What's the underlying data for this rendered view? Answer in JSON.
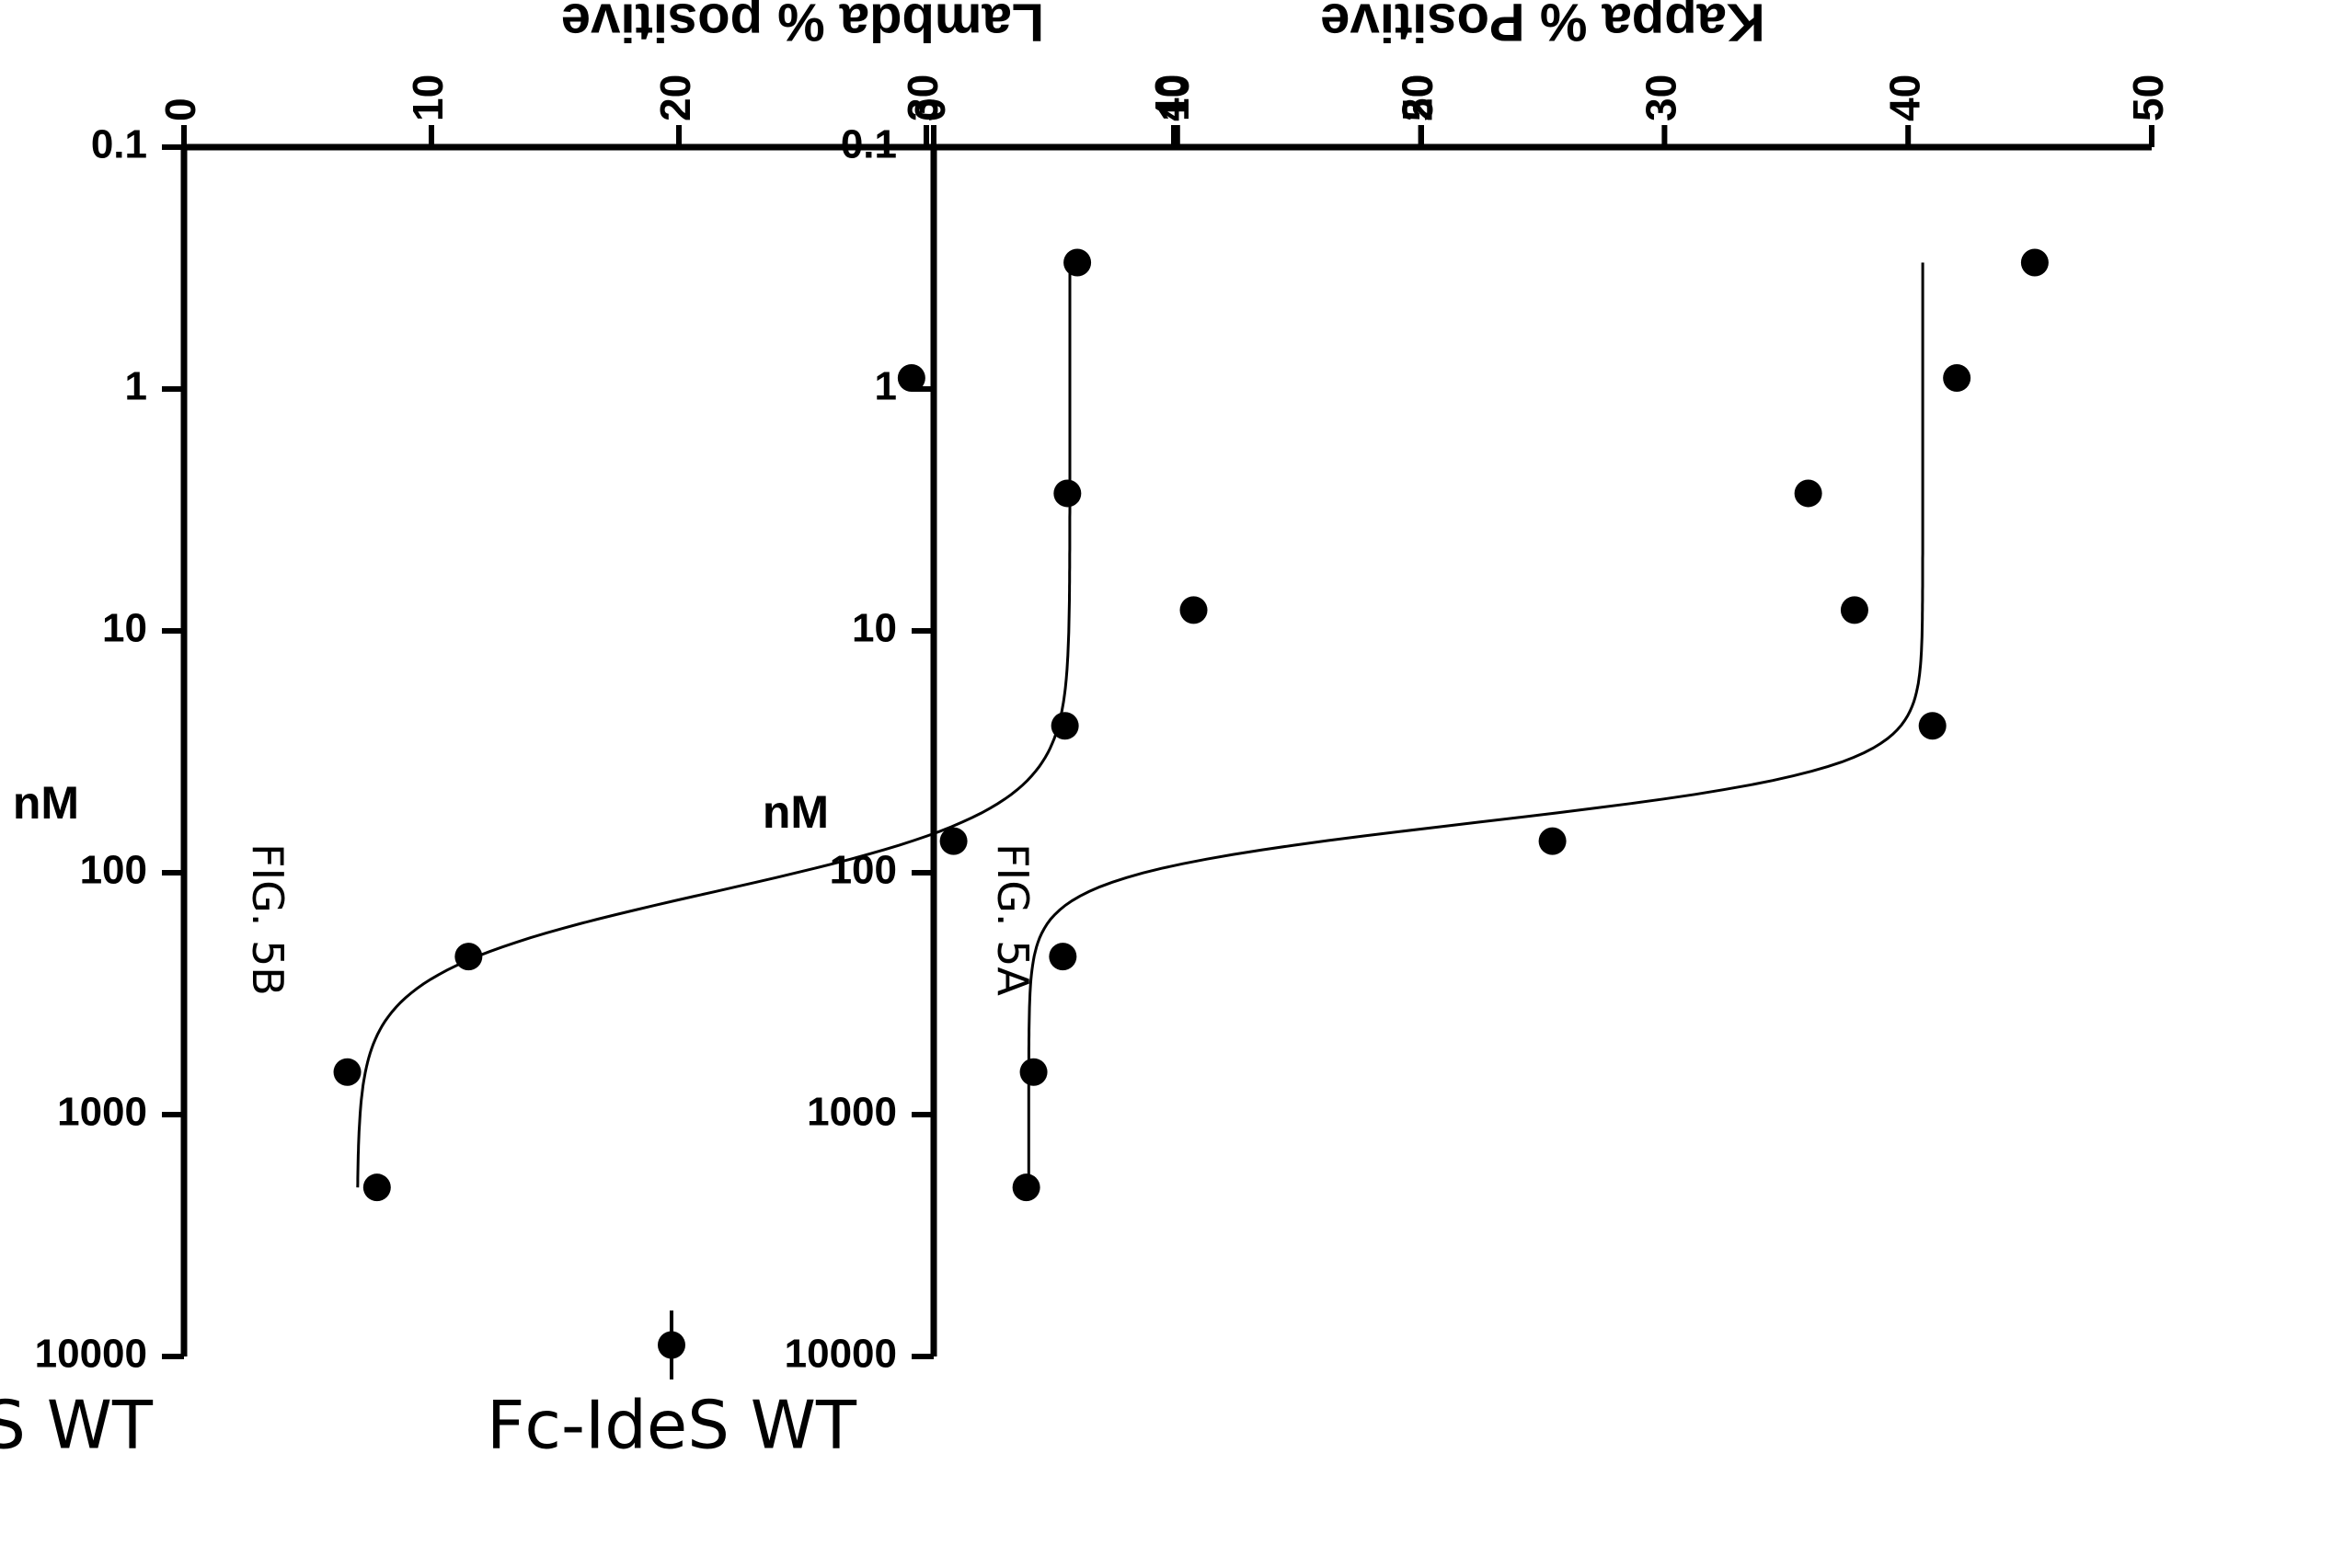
{
  "chart_data": [
    {
      "type": "scatter",
      "fig_label": "FIG. 5A",
      "xlabel": "nM",
      "ylabel": "Kappa % Positive",
      "x_scale": "log",
      "xlim": [
        0.1,
        10000
      ],
      "ylim": [
        0,
        50
      ],
      "x_ticks": [
        "0.1",
        "1",
        "10",
        "100",
        "1000",
        "10000"
      ],
      "y_ticks": [
        "0",
        "10",
        "20",
        "30",
        "40",
        "50"
      ],
      "legend_position": "top-right",
      "grid": false,
      "series": [
        {
          "name": "Fc-IdeS WT",
          "x": [
            0.3,
            0.9,
            2.7,
            8.2,
            24.7,
            74,
            222,
            667,
            2000
          ],
          "y": [
            45.2,
            42.0,
            35.9,
            37.8,
            41.0,
            25.4,
            5.3,
            4.1,
            3.8
          ]
        }
      ]
    },
    {
      "type": "scatter",
      "fig_label": "FIG. 5B",
      "xlabel": "nM",
      "ylabel": "Lambda % positive",
      "x_scale": "log",
      "xlim": [
        0.1,
        10000
      ],
      "ylim": [
        0,
        50
      ],
      "x_ticks": [
        "0.1",
        "1",
        "10",
        "100",
        "1000",
        "10000"
      ],
      "y_ticks": [
        "0",
        "10",
        "20",
        "30",
        "40",
        "50"
      ],
      "legend_position": "top-right",
      "grid": false,
      "series": [
        {
          "name": "Fc-IdeS WT",
          "x": [
            0.3,
            0.9,
            2.7,
            8.2,
            24.7,
            74,
            222,
            667,
            2000
          ],
          "y": [
            36.1,
            29.4,
            35.7,
            40.8,
            35.6,
            31.1,
            11.5,
            6.6,
            7.8
          ]
        }
      ]
    }
  ]
}
